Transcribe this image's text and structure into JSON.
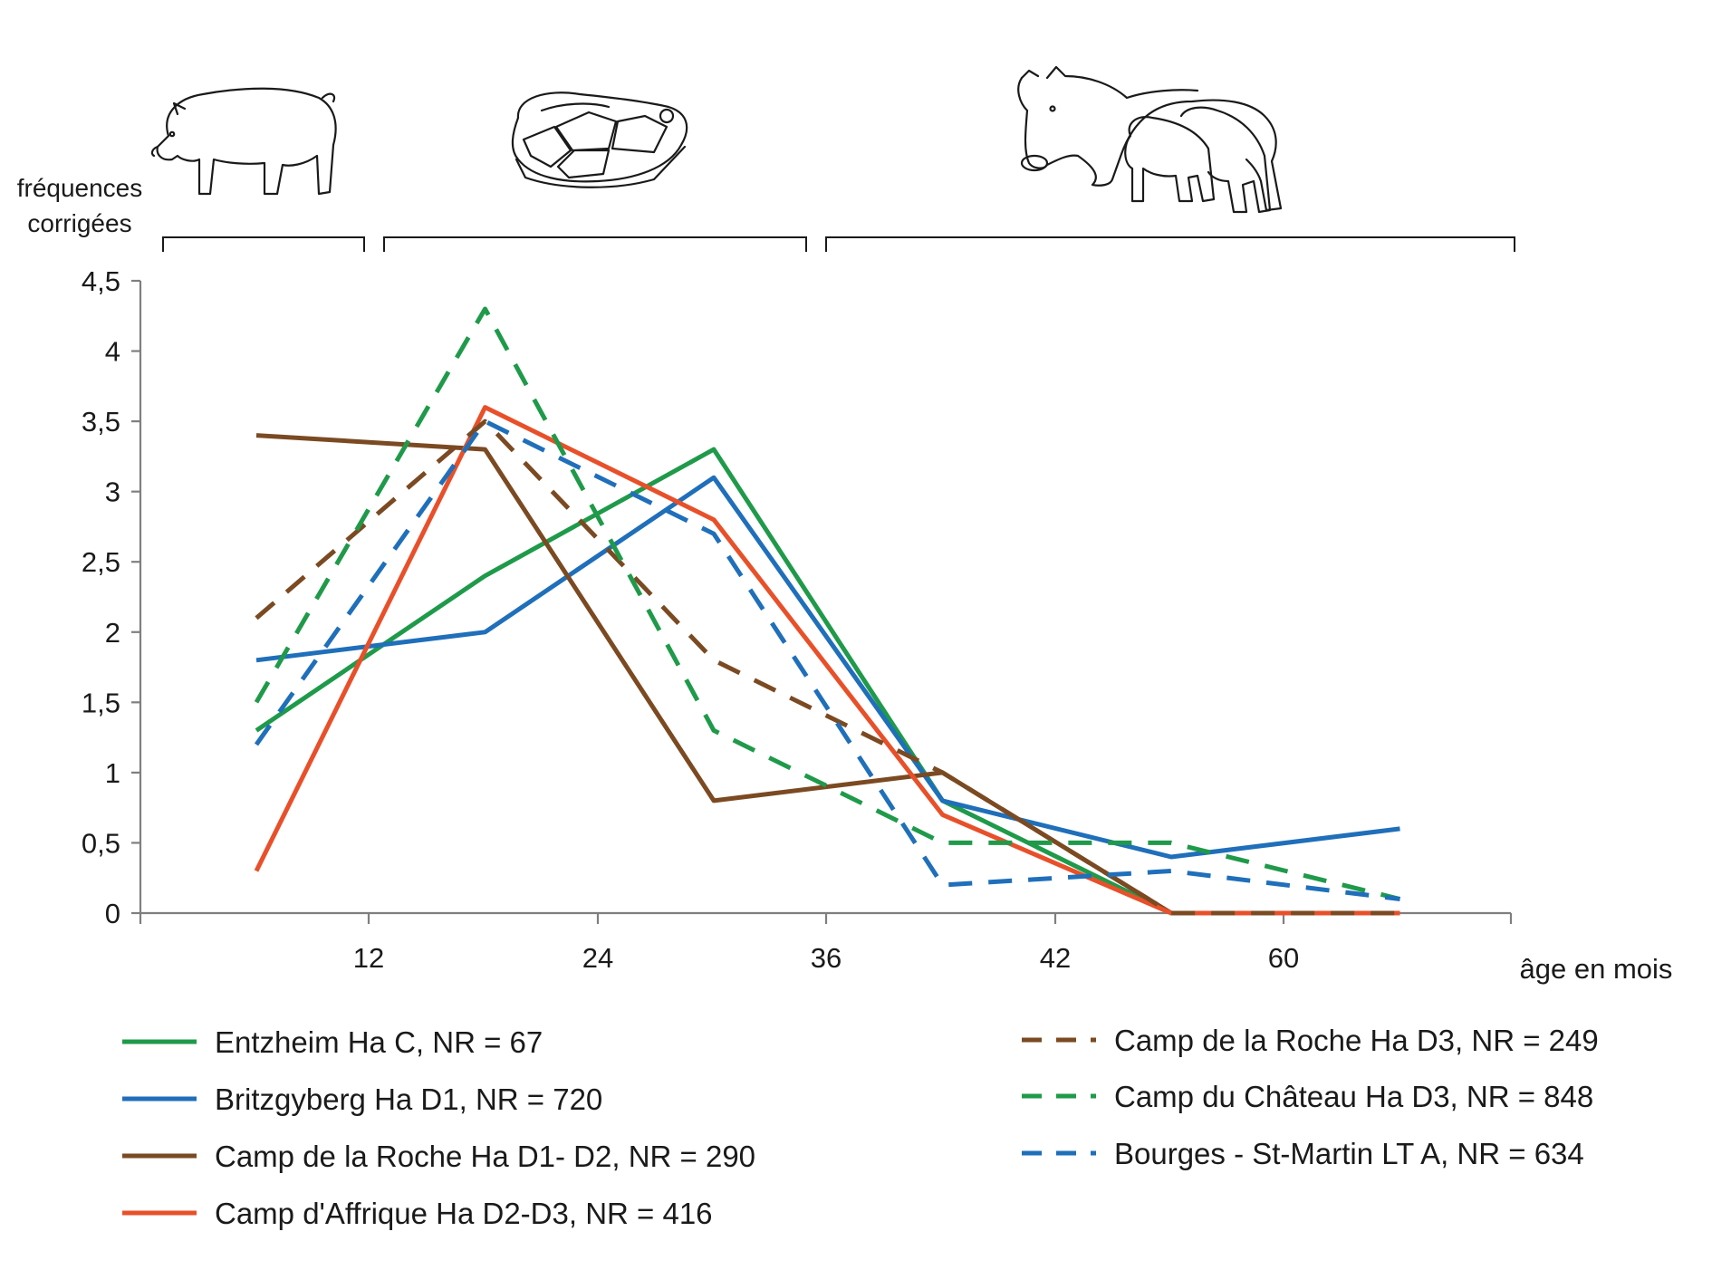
{
  "chart_data": {
    "type": "line",
    "ylabel": "fréquences corrigées",
    "ylabel_lines": [
      "fréquences",
      "corrigées"
    ],
    "xlabel": "âge en mois",
    "ylim": [
      0,
      4.5
    ],
    "y_ticks": [
      "0",
      "0,5",
      "1",
      "1,5",
      "2",
      "2,5",
      "3",
      "3,5",
      "4",
      "4,5"
    ],
    "x_tick_labels": [
      "12",
      "24",
      "36",
      "42",
      "60"
    ],
    "x_categories": 6,
    "grid": false,
    "legend_position": "bottom",
    "illustrations": [
      "piglet-icon",
      "pork-cut-icon",
      "sow-with-piglets-icon"
    ],
    "series": [
      {
        "name": "Entzheim Ha C, NR = 67",
        "color": "#1f9a4a",
        "dash": false,
        "values": [
          1.3,
          2.4,
          3.3,
          0.8,
          0,
          0
        ]
      },
      {
        "name": "Britzgyberg Ha D1, NR = 720",
        "color": "#1f6fba",
        "dash": false,
        "values": [
          1.8,
          2.0,
          3.1,
          0.8,
          0.4,
          0.6
        ]
      },
      {
        "name": "Camp de la Roche Ha D1- D2, NR = 290",
        "color": "#7b4a22",
        "dash": false,
        "values": [
          3.4,
          3.3,
          0.8,
          1.0,
          0,
          0
        ]
      },
      {
        "name": "Camp d'Affrique Ha D2-D3, NR = 416",
        "color": "#e8502a",
        "dash": false,
        "values": [
          0.3,
          3.6,
          2.8,
          0.7,
          0,
          0
        ]
      },
      {
        "name": "Camp de la Roche Ha D3, NR = 249",
        "color": "#7b4a22",
        "dash": true,
        "values": [
          2.1,
          3.5,
          1.8,
          1.0,
          0,
          0
        ]
      },
      {
        "name": "Camp du Château Ha D3, NR = 848",
        "color": "#1f9a4a",
        "dash": true,
        "values": [
          1.5,
          4.3,
          1.3,
          0.5,
          0.5,
          0.1
        ]
      },
      {
        "name": "Bourges - St-Martin LT A, NR = 634",
        "color": "#1f6fba",
        "dash": true,
        "values": [
          1.2,
          3.5,
          2.7,
          0.2,
          0.3,
          0.1
        ]
      }
    ]
  }
}
